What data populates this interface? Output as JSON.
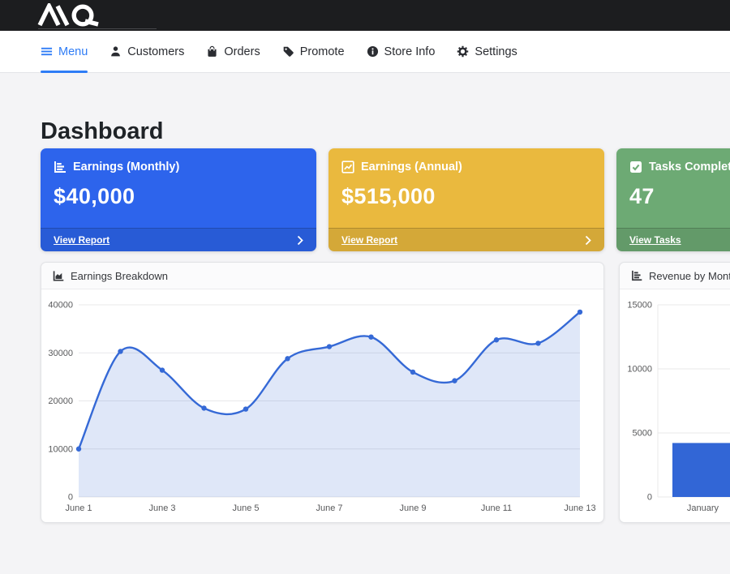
{
  "topbar": {
    "logo_text": "MQ"
  },
  "nav": {
    "items": [
      {
        "label": "Menu",
        "icon": "hamburger-icon",
        "active": true
      },
      {
        "label": "Customers",
        "icon": "person-icon",
        "active": false
      },
      {
        "label": "Orders",
        "icon": "shopping-bag-icon",
        "active": false
      },
      {
        "label": "Promote",
        "icon": "tag-icon",
        "active": false
      },
      {
        "label": "Store Info",
        "icon": "info-circle-icon",
        "active": false
      },
      {
        "label": "Settings",
        "icon": "gear-icon",
        "active": false
      }
    ]
  },
  "page": {
    "title": "Dashboard"
  },
  "stat_cards": [
    {
      "title": "Earnings (Monthly)",
      "value": "$40,000",
      "link": "View Report",
      "color": "#2d64ec",
      "icon": "chart-bars-icon"
    },
    {
      "title": "Earnings (Annual)",
      "value": "$515,000",
      "link": "View Report",
      "color": "#eab93e",
      "icon": "chart-line-icon"
    },
    {
      "title": "Tasks Completed",
      "value": "47",
      "link": "View Tasks",
      "color": "#6daa74",
      "icon": "check-square-icon"
    }
  ],
  "colors": {
    "nav_active": "#2e7cf6",
    "topbar_bg": "#1c1d1f",
    "page_bg": "#f4f4f6",
    "grid": "#e8e8ea",
    "axis_text": "#58595b"
  },
  "chart_data": [
    {
      "type": "line",
      "title": "Earnings Breakdown",
      "x": [
        "June 1",
        "June 2",
        "June 3",
        "June 4",
        "June 5",
        "June 6",
        "June 7",
        "June 8",
        "June 9",
        "June 10",
        "June 11",
        "June 12",
        "June 13"
      ],
      "values": [
        10000,
        30300,
        26400,
        18500,
        18300,
        28800,
        31300,
        33300,
        26000,
        24200,
        32700,
        32000,
        38500
      ],
      "ylim": [
        0,
        40000
      ],
      "yticks": [
        0,
        10000,
        20000,
        30000,
        40000
      ],
      "xtick_every": 2,
      "grid": true,
      "legend": "none",
      "line_color": "#3569d6",
      "point_color": "#3569d6",
      "fill_color": "rgba(53,105,214,0.16)"
    },
    {
      "type": "bar",
      "title": "Revenue by Month",
      "categories": [
        "January"
      ],
      "values": [
        4215
      ],
      "ylim": [
        0,
        15000
      ],
      "yticks": [
        0,
        5000,
        10000,
        15000
      ],
      "grid": true,
      "legend": "none",
      "bar_color": "#3266d6"
    }
  ]
}
